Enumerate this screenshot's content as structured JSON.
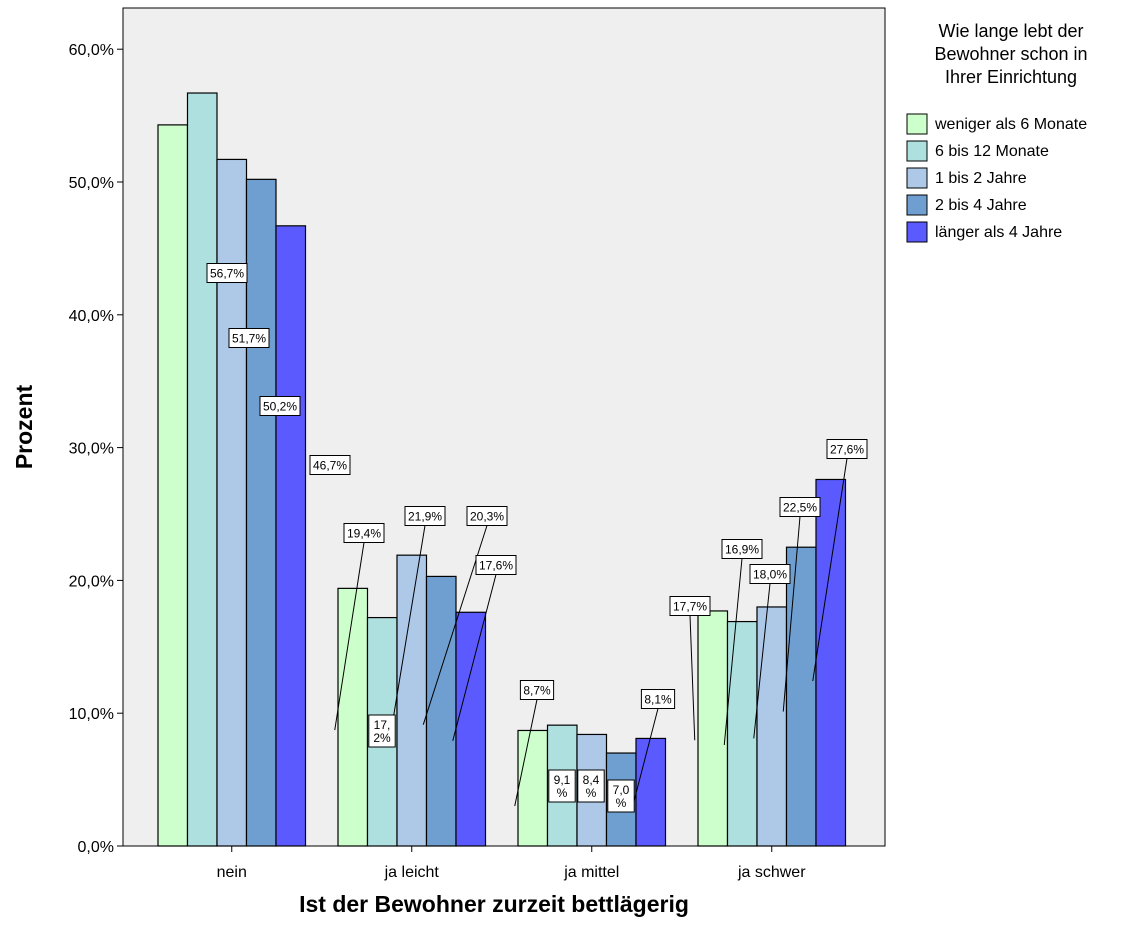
{
  "chart_data": {
    "type": "bar",
    "xlabel": "Ist der Bewohner zurzeit bettlägerig",
    "ylabel": "Prozent",
    "categories": [
      "nein",
      "ja leicht",
      "ja mittel",
      "ja schwer"
    ],
    "ylim": [
      0,
      63.5
    ],
    "yticks": [
      "0,0%",
      "10,0%",
      "20,0%",
      "30,0%",
      "40,0%",
      "50,0%",
      "60,0%"
    ],
    "legend": {
      "title": [
        "Wie lange lebt der",
        "Bewohner schon in",
        "Ihrer Einrichtung"
      ],
      "placement": "right"
    },
    "series": [
      {
        "name": "weniger als 6 Monate",
        "color": "#ccffcc",
        "values": [
          54.3,
          19.4,
          8.7,
          17.7
        ]
      },
      {
        "name": "6 bis 12 Monate",
        "color": "#aee0e0",
        "values": [
          56.7,
          17.2,
          9.1,
          16.9
        ]
      },
      {
        "name": "1 bis 2 Jahre",
        "color": "#aec8e8",
        "values": [
          51.7,
          21.9,
          8.4,
          18.0
        ]
      },
      {
        "name": "2 bis 4 Jahre",
        "color": "#6f9fd0",
        "values": [
          50.2,
          20.3,
          7.0,
          22.5
        ]
      },
      {
        "name": "länger als 4 Jahre",
        "color": "#5a5aff",
        "values": [
          46.7,
          17.6,
          8.1,
          27.6
        ]
      }
    ],
    "data_labels": [
      {
        "text": [
          "56,7%"
        ],
        "series": 1,
        "category": 0
      },
      {
        "text": [
          "51,7%"
        ],
        "series": 2,
        "category": 0
      },
      {
        "text": [
          "50,2%"
        ],
        "series": 3,
        "category": 0
      },
      {
        "text": [
          "46,7%"
        ],
        "series": 4,
        "category": 0
      },
      {
        "text": [
          "19,4%"
        ],
        "series": 0,
        "category": 1
      },
      {
        "text": [
          "17,",
          "2%"
        ],
        "series": 1,
        "category": 1
      },
      {
        "text": [
          "21,9%"
        ],
        "series": 2,
        "category": 1
      },
      {
        "text": [
          "20,3%"
        ],
        "series": 3,
        "category": 1
      },
      {
        "text": [
          "17,6%"
        ],
        "series": 4,
        "category": 1
      },
      {
        "text": [
          "8,7%"
        ],
        "series": 0,
        "category": 2
      },
      {
        "text": [
          "9,1",
          "%"
        ],
        "series": 1,
        "category": 2
      },
      {
        "text": [
          "8,4",
          "%"
        ],
        "series": 2,
        "category": 2
      },
      {
        "text": [
          "7,0",
          "%"
        ],
        "series": 3,
        "category": 2
      },
      {
        "text": [
          "8,1%"
        ],
        "series": 4,
        "category": 2
      },
      {
        "text": [
          "17,7%"
        ],
        "series": 0,
        "category": 3
      },
      {
        "text": [
          "16,9%"
        ],
        "series": 1,
        "category": 3
      },
      {
        "text": [
          "18,0%"
        ],
        "series": 2,
        "category": 3
      },
      {
        "text": [
          "22,5%"
        ],
        "series": 3,
        "category": 3
      },
      {
        "text": [
          "27,6%"
        ],
        "series": 4,
        "category": 3
      }
    ]
  }
}
